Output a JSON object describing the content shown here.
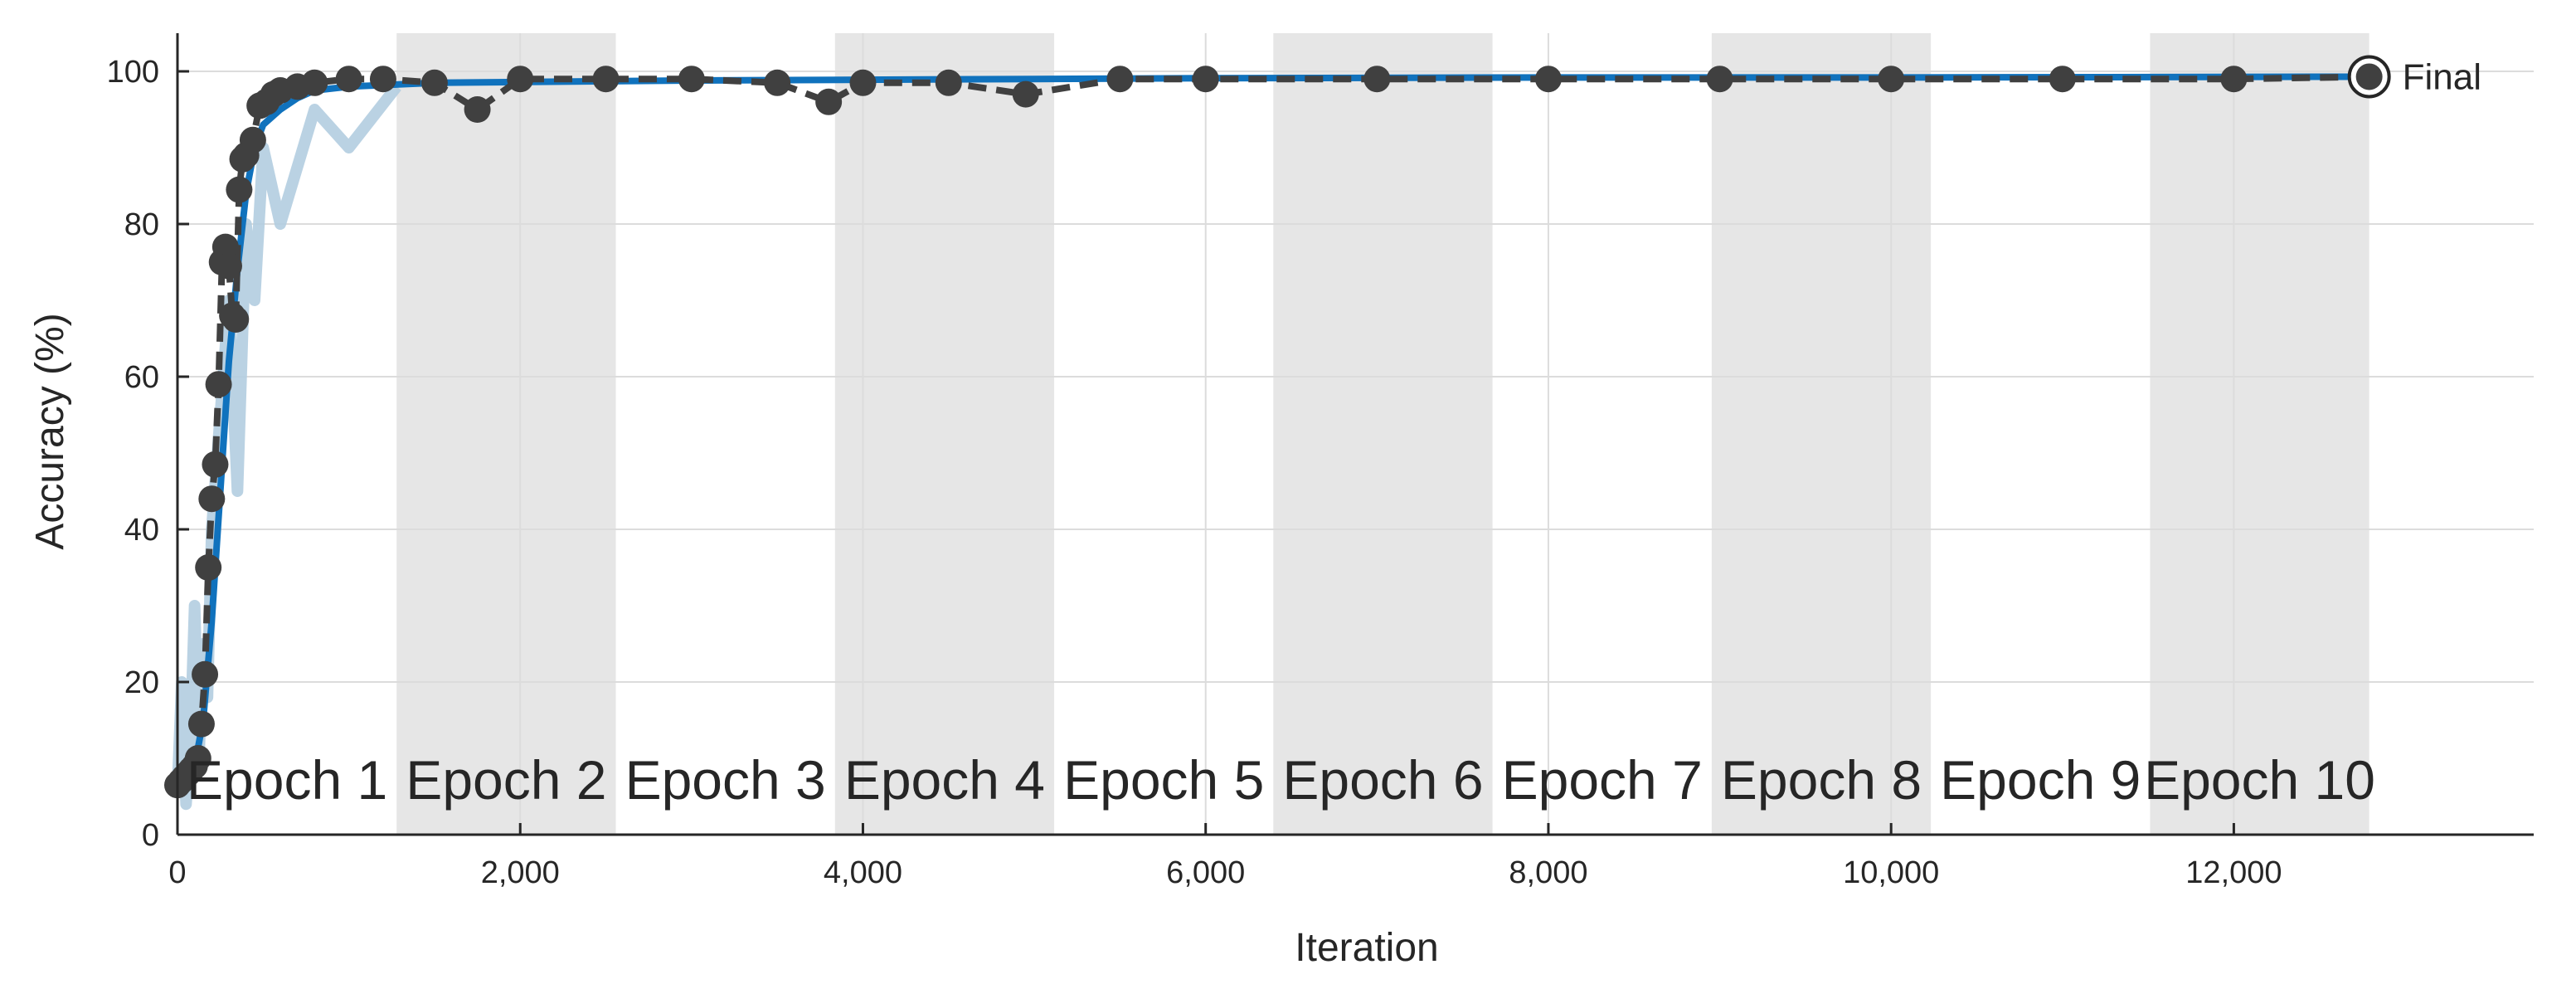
{
  "chart_data": {
    "type": "line",
    "xlabel": "Iteration",
    "ylabel": "Accuracy (%)",
    "xlim": [
      0,
      13750
    ],
    "ylim": [
      0,
      105
    ],
    "x_ticks": [
      0,
      2000,
      4000,
      6000,
      8000,
      10000,
      12000
    ],
    "x_tick_labels": [
      "0",
      "2,000",
      "4,000",
      "6,000",
      "8,000",
      "10,000",
      "12,000"
    ],
    "y_ticks": [
      0,
      20,
      40,
      60,
      80,
      100
    ],
    "y_tick_labels": [
      "0",
      "20",
      "40",
      "60",
      "80",
      "100"
    ],
    "grid": true,
    "iterations_total": 12790,
    "epochs": [
      {
        "label": "Epoch 1",
        "start": 0,
        "end": 1279,
        "shaded": false
      },
      {
        "label": "Epoch 2",
        "start": 1279,
        "end": 2558,
        "shaded": true
      },
      {
        "label": "Epoch 3",
        "start": 2558,
        "end": 3837,
        "shaded": false
      },
      {
        "label": "Epoch 4",
        "start": 3837,
        "end": 5116,
        "shaded": true
      },
      {
        "label": "Epoch 5",
        "start": 5116,
        "end": 6395,
        "shaded": false
      },
      {
        "label": "Epoch 6",
        "start": 6395,
        "end": 7674,
        "shaded": true
      },
      {
        "label": "Epoch 7",
        "start": 7674,
        "end": 8953,
        "shaded": false
      },
      {
        "label": "Epoch 8",
        "start": 8953,
        "end": 10232,
        "shaded": true
      },
      {
        "label": "Epoch 9",
        "start": 10232,
        "end": 11511,
        "shaded": false
      },
      {
        "label": "Epoch 10",
        "start": 11511,
        "end": 12790,
        "shaded": true
      }
    ],
    "series": [
      {
        "role": "training-raw",
        "color": "#b2cde0",
        "x": [
          0,
          25,
          50,
          75,
          100,
          125,
          150,
          175,
          200,
          250,
          300,
          350,
          400,
          450,
          500,
          600,
          800,
          1000,
          1279
        ],
        "y": [
          6,
          20,
          4,
          12,
          30,
          10,
          25,
          18,
          40,
          55,
          70,
          45,
          80,
          70,
          90,
          80,
          95,
          90,
          98
        ]
      },
      {
        "role": "training-smoothed",
        "color": "#1072bd",
        "x": [
          0,
          50,
          100,
          150,
          200,
          250,
          300,
          350,
          400,
          450,
          500,
          600,
          700,
          800,
          1000,
          1500,
          2000,
          3000,
          4000,
          5000,
          6000,
          8000,
          10000,
          12790
        ],
        "y": [
          6,
          7,
          9,
          15,
          28,
          45,
          62,
          74,
          84,
          90,
          93,
          95,
          96.5,
          97.5,
          98,
          98.5,
          98.6,
          98.8,
          98.9,
          99,
          99.1,
          99.2,
          99.2,
          99.3
        ]
      },
      {
        "role": "validation",
        "color": "#404040",
        "x": [
          0,
          20,
          40,
          60,
          80,
          100,
          120,
          140,
          160,
          180,
          200,
          220,
          240,
          260,
          280,
          300,
          320,
          340,
          360,
          380,
          400,
          440,
          480,
          520,
          560,
          600,
          700,
          800,
          1000,
          1200,
          1500,
          1750,
          2000,
          2500,
          3000,
          3500,
          3800,
          4000,
          4500,
          4950,
          5500,
          6000,
          7000,
          8000,
          9000,
          10000,
          11000,
          12000,
          12790
        ],
        "y": [
          6.5,
          7,
          7.5,
          8,
          8.5,
          9,
          10,
          14.5,
          21,
          35,
          44,
          48.5,
          59,
          75,
          77,
          74.5,
          68,
          67.5,
          84.5,
          88.5,
          89,
          91,
          95.5,
          96,
          97,
          97.5,
          98,
          98.5,
          99,
          99,
          98.5,
          95,
          99,
          99,
          99,
          98.5,
          96,
          98.5,
          98.5,
          97,
          99,
          99,
          99,
          99,
          99,
          99,
          99,
          99,
          99.3
        ]
      }
    ],
    "annotation": "Final"
  }
}
